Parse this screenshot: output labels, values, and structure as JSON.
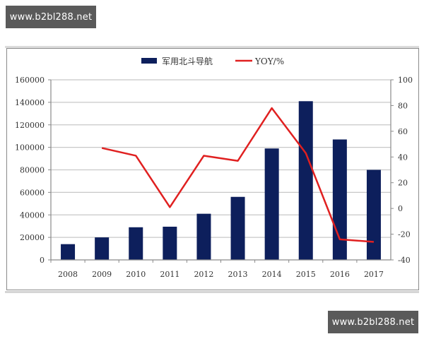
{
  "watermarks": {
    "top_left": "www.b2bl288.net",
    "bottom_right": "www.b2bl288.net"
  },
  "legend": {
    "bar_label": "军用北斗导航",
    "line_label": "YOY/%"
  },
  "colors": {
    "bar": "#0d1f5c",
    "line": "#e02020",
    "grid": "#c8c8c8",
    "axis": "#8a8a8a",
    "watermark_bg": "#5a5a5a"
  },
  "chart_data": {
    "type": "bar+line",
    "title": "",
    "xlabel": "",
    "ylabel": "",
    "categories": [
      "2008",
      "2009",
      "2010",
      "2011",
      "2012",
      "2013",
      "2014",
      "2015",
      "2016",
      "2017"
    ],
    "series": [
      {
        "name": "军用北斗导航",
        "type": "bar",
        "axis": "left",
        "values": [
          14000,
          20000,
          29000,
          29500,
          41000,
          56000,
          99000,
          141000,
          107000,
          80000
        ]
      },
      {
        "name": "YOY/%",
        "type": "line",
        "axis": "right",
        "values": [
          null,
          47,
          41,
          1,
          41,
          37,
          78,
          43,
          -24,
          -26
        ]
      }
    ],
    "y_left": {
      "ylim": [
        0,
        160000
      ],
      "ticks": [
        "0",
        "20000",
        "40000",
        "60000",
        "80000",
        "100000",
        "120000",
        "140000",
        "160000"
      ]
    },
    "y_right": {
      "ylim": [
        -40,
        100
      ],
      "ticks": [
        "-40",
        "-20",
        "0",
        "20",
        "40",
        "60",
        "80",
        "100"
      ]
    },
    "grid": true,
    "legend_position": "top"
  }
}
